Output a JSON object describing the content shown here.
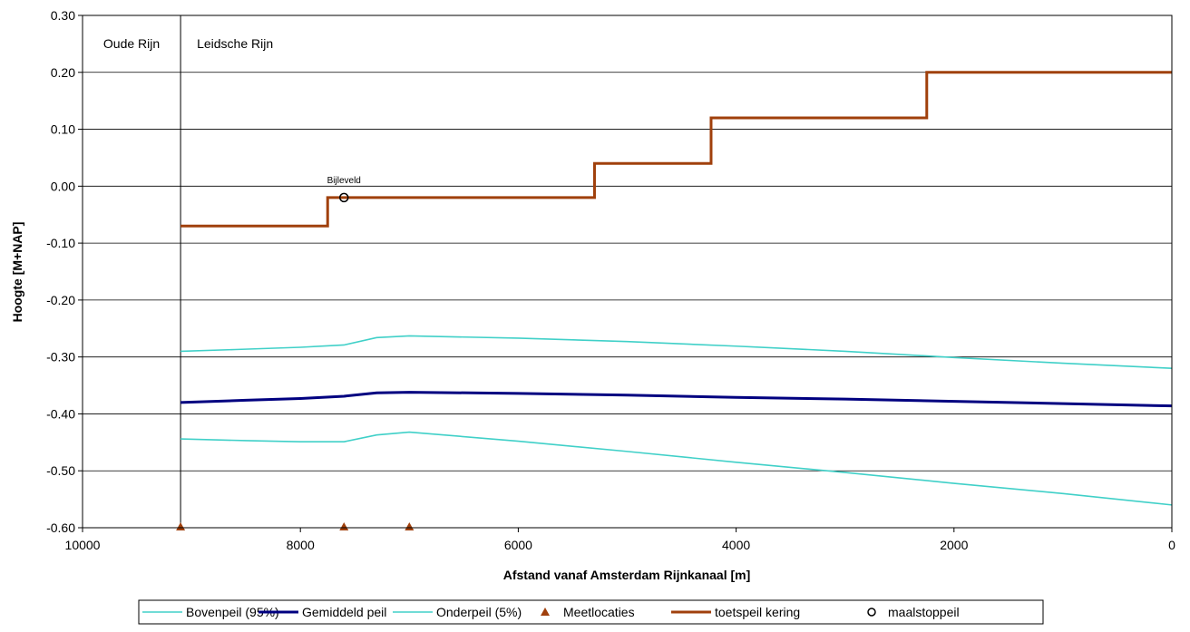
{
  "chart_data": {
    "type": "line",
    "title": "",
    "xlabel": "Afstand vanaf Amsterdam Rijnkanaal [m]",
    "ylabel": "Hoogte [M+NAP]",
    "xlim": [
      10000,
      0
    ],
    "ylim": [
      -0.6,
      0.3
    ],
    "x_reversed": true,
    "x_ticks": [
      10000,
      8000,
      6000,
      4000,
      2000,
      0
    ],
    "x_tick_labels": [
      "10000",
      "8000",
      "6000",
      "4000",
      "2000",
      "0"
    ],
    "y_ticks": [
      0.3,
      0.2,
      0.1,
      0.0,
      -0.1,
      -0.2,
      -0.3,
      -0.4,
      -0.5,
      -0.6
    ],
    "y_tick_labels": [
      "0.30",
      "0.20",
      "0.10",
      "0.00",
      "-0.10",
      "-0.20",
      "-0.30",
      "-0.40",
      "-0.50",
      "-0.60"
    ],
    "grid": "horizontal",
    "legend_position": "bottom",
    "regions": [
      {
        "label": "Oude Rijn"
      },
      {
        "label": "Leidsche Rijn"
      }
    ],
    "boundary_x": 9100,
    "series": [
      {
        "name": "Bovenpeil (95%)",
        "kind": "line",
        "color": "#40d0c8",
        "x": [
          9100,
          8600,
          8000,
          7600,
          7300,
          7000,
          6000,
          5000,
          4000,
          3000,
          2000,
          1000,
          0
        ],
        "y": [
          -0.29,
          -0.287,
          -0.283,
          -0.279,
          -0.266,
          -0.263,
          -0.267,
          -0.273,
          -0.281,
          -0.29,
          -0.301,
          -0.311,
          -0.32
        ]
      },
      {
        "name": "Gemiddeld peil",
        "kind": "line",
        "color": "#000080",
        "x": [
          9100,
          8500,
          8000,
          7600,
          7300,
          7000,
          6000,
          5000,
          4000,
          3000,
          2000,
          1000,
          0
        ],
        "y": [
          -0.38,
          -0.376,
          -0.373,
          -0.369,
          -0.363,
          -0.362,
          -0.364,
          -0.367,
          -0.371,
          -0.374,
          -0.378,
          -0.382,
          -0.386
        ]
      },
      {
        "name": "Onderpeil (5%)",
        "kind": "line",
        "color": "#40d0c8",
        "x": [
          9100,
          8500,
          8000,
          7600,
          7300,
          7000,
          6000,
          5000,
          4000,
          3000,
          2000,
          1000,
          0
        ],
        "y": [
          -0.444,
          -0.447,
          -0.449,
          -0.449,
          -0.437,
          -0.432,
          -0.448,
          -0.466,
          -0.485,
          -0.503,
          -0.522,
          -0.54,
          -0.56
        ]
      },
      {
        "name": "Meetlocaties",
        "kind": "marker-triangle",
        "color": "#a0400c",
        "x": [
          9100,
          7600,
          7000
        ],
        "y": [
          -0.6,
          -0.6,
          -0.6
        ]
      },
      {
        "name": "toetspeil kering",
        "kind": "step",
        "color": "#a0400c",
        "x": [
          9100,
          7750,
          7750,
          5300,
          5300,
          4230,
          4230,
          2250,
          2250,
          0
        ],
        "y": [
          -0.07,
          -0.07,
          -0.02,
          -0.02,
          0.04,
          0.04,
          0.12,
          0.12,
          0.2,
          0.2
        ]
      },
      {
        "name": "maalstoppeil",
        "kind": "marker-circle",
        "color": "#000000",
        "x": [
          7600
        ],
        "y": [
          -0.02
        ],
        "labels": [
          "Bijleveld"
        ]
      }
    ]
  }
}
